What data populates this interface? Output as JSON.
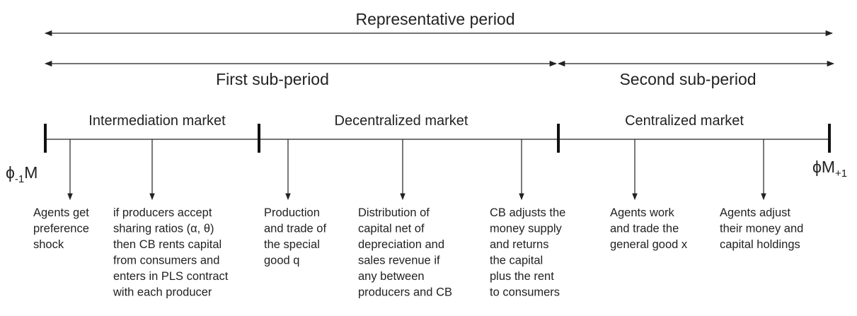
{
  "title": "Representative period",
  "sub_periods": [
    "First sub-period",
    "Second sub-period"
  ],
  "markets": [
    "Intermediation market",
    "Decentralized market",
    "Centralized market"
  ],
  "start_label": {
    "base": "ϕ",
    "sub": "-1",
    "after": "M"
  },
  "end_label": {
    "base": "ϕM",
    "sub": "+1"
  },
  "events": [
    {
      "lines": [
        "Agents get",
        "preference",
        "shock"
      ]
    },
    {
      "lines": [
        "if producers accept",
        "sharing ratios (α, θ)",
        "then CB rents capital",
        "from consumers and",
        "enters in PLS contract",
        "with each producer"
      ]
    },
    {
      "lines": [
        "Production",
        "and trade of",
        "the special",
        "good q"
      ]
    },
    {
      "lines": [
        "Distribution of",
        "capital net of",
        "depreciation and",
        "sales revenue if",
        "any between",
        "producers and CB"
      ]
    },
    {
      "lines": [
        "CB adjusts the",
        "money supply",
        "and returns",
        "the capital",
        "plus the rent",
        "to consumers"
      ]
    },
    {
      "lines": [
        "Agents work",
        "and trade the",
        "general good x"
      ]
    },
    {
      "lines": [
        "Agents adjust",
        "their money and",
        "capital holdings"
      ]
    }
  ]
}
